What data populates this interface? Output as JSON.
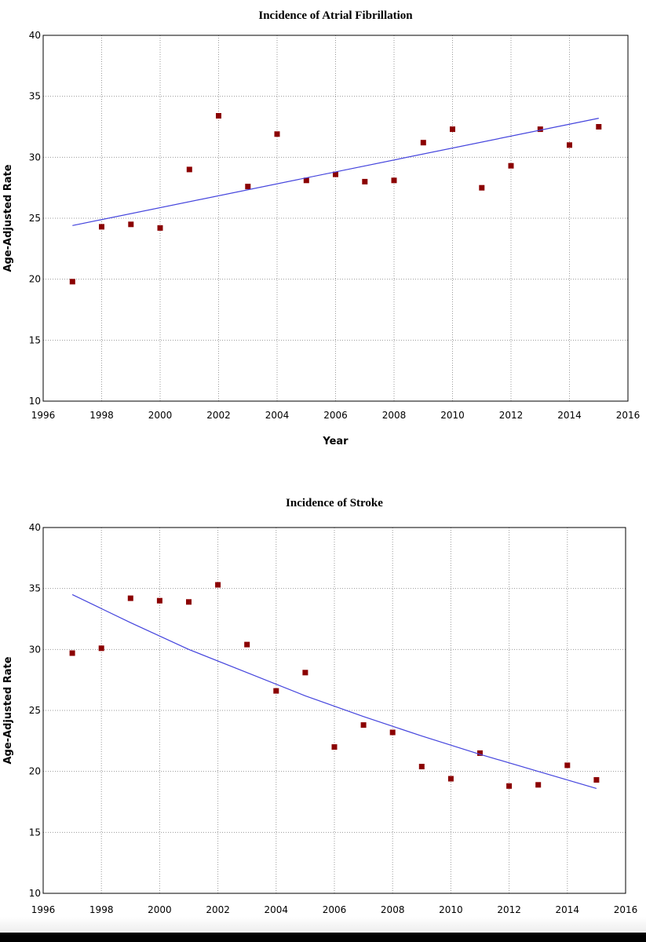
{
  "chart_data": [
    {
      "type": "scatter",
      "title": "Incidence of Atrial Fibrillation",
      "xlabel": "Year",
      "ylabel": "Age-Adjusted Rate",
      "xlim": [
        1996,
        2016
      ],
      "ylim": [
        10,
        40
      ],
      "x_ticks": [
        "1996",
        "1998",
        "2000",
        "2002",
        "2004",
        "2006",
        "2008",
        "2010",
        "2012",
        "2014",
        "2016"
      ],
      "y_ticks": [
        "10",
        "15",
        "20",
        "25",
        "30",
        "35",
        "40"
      ],
      "grid": true,
      "legend": "none",
      "series": [
        {
          "kind": "points",
          "color": "#8b0000",
          "x": [
            1997,
            1998,
            1999,
            2000,
            2001,
            2002,
            2003,
            2004,
            2005,
            2006,
            2007,
            2008,
            2009,
            2010,
            2011,
            2012,
            2013,
            2014,
            2015
          ],
          "y": [
            19.8,
            24.3,
            24.5,
            24.2,
            29.0,
            33.4,
            27.6,
            31.9,
            28.1,
            28.6,
            28.0,
            28.1,
            31.2,
            32.3,
            27.5,
            29.3,
            32.3,
            31.0,
            32.5
          ]
        },
        {
          "kind": "trend",
          "color": "#4444dd",
          "x": [
            1997,
            2015
          ],
          "y": [
            24.4,
            33.2
          ]
        }
      ]
    },
    {
      "type": "scatter",
      "title": "Incidence of Stroke",
      "xlabel": "Year",
      "ylabel": "Age-Adjusted Rate",
      "xlim": [
        1996,
        2016
      ],
      "ylim": [
        10,
        40
      ],
      "x_ticks": [
        "1996",
        "1998",
        "2000",
        "2002",
        "2004",
        "2006",
        "2008",
        "2010",
        "2012",
        "2014",
        "2016"
      ],
      "y_ticks": [
        "10",
        "15",
        "20",
        "25",
        "30",
        "35",
        "40"
      ],
      "grid": true,
      "legend": "none",
      "series": [
        {
          "kind": "points",
          "color": "#8b0000",
          "x": [
            1997,
            1998,
            1999,
            2000,
            2001,
            2002,
            2003,
            2004,
            2005,
            2006,
            2007,
            2008,
            2009,
            2010,
            2011,
            2012,
            2013,
            2014,
            2015
          ],
          "y": [
            29.7,
            30.1,
            34.2,
            34.0,
            33.9,
            35.3,
            30.4,
            26.6,
            28.1,
            22.0,
            23.8,
            23.2,
            20.4,
            19.4,
            21.5,
            18.8,
            18.9,
            20.5,
            19.3
          ]
        },
        {
          "kind": "trend",
          "color": "#4444dd",
          "x": [
            1997,
            1999,
            2001,
            2003,
            2005,
            2007,
            2009,
            2011,
            2013,
            2015
          ],
          "y": [
            34.5,
            32.2,
            30.0,
            28.1,
            26.2,
            24.5,
            22.9,
            21.4,
            20.0,
            18.6
          ]
        }
      ]
    }
  ]
}
